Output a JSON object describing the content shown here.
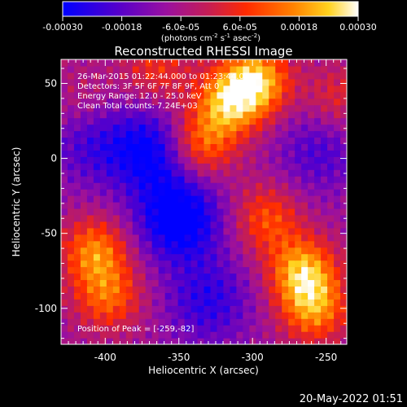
{
  "colorbar": {
    "ticks": [
      "-0.00030",
      "-0.00018",
      "-6.0e-05",
      "6.0e-05",
      "0.00018",
      "0.00030"
    ],
    "units_prefix": "(photons cm",
    "units_exp1": "-2",
    "units_mid": " s",
    "units_exp2": "-1",
    "units_mid2": " asec",
    "units_exp3": "-2",
    "units_suffix": ")"
  },
  "annotations": {
    "time_range": "26-Mar-2015 01:22:44.000 to 01:23:44.000",
    "detectors": "Detectors: 3F 5F 6F 7F 8F 9F, Att 0",
    "energy": "Energy Range: 12.0 - 25.0 keV",
    "clean": "Clean     Total counts: 7.24E+03",
    "peak": "Position of Peak = [-259,-82]"
  },
  "footer": {
    "timestamp": "20-May-2022 01:51"
  },
  "chart_data": {
    "type": "heatmap",
    "title": "Reconstructed RHESSI Image",
    "xlabel": "Heliocentric X (arcsec)",
    "ylabel": "Heliocentric Y (arcsec)",
    "xlim": [
      -430,
      -236
    ],
    "ylim": [
      -124,
      66
    ],
    "x_ticks": [
      -400,
      -350,
      -300,
      -250
    ],
    "y_ticks": [
      -100,
      -50,
      0,
      50
    ],
    "x_tick_labels": [
      "-400",
      "-350",
      "-300",
      "-250"
    ],
    "y_tick_labels": [
      "-100",
      "-50",
      "0",
      "50"
    ],
    "value_range": [
      -0.0003,
      0.0003
    ],
    "colormap": [
      "#0000ff",
      "#5a00c8",
      "#9a10a0",
      "#c81e50",
      "#ff2a00",
      "#ff8200",
      "#ffd21e",
      "#ffffff"
    ],
    "peak_position": [
      -259,
      -82
    ],
    "sources": [
      {
        "x": -316,
        "y": 38,
        "peak": 0.00028
      },
      {
        "x": -297,
        "y": 52,
        "peak": 0.0003
      },
      {
        "x": -335,
        "y": 10,
        "peak": 0.00022
      },
      {
        "x": -266,
        "y": -75,
        "peak": 0.00029
      },
      {
        "x": -258,
        "y": -100,
        "peak": 0.00024
      },
      {
        "x": -290,
        "y": -40,
        "peak": 0.00018
      },
      {
        "x": -407,
        "y": -62,
        "peak": 0.00024
      },
      {
        "x": -398,
        "y": -92,
        "peak": 0.0002
      },
      {
        "x": -365,
        "y": 60,
        "peak": 0.00014
      },
      {
        "x": -242,
        "y": 40,
        "peak": 0.00012
      },
      {
        "x": -415,
        "y": 40,
        "peak": 6e-05
      }
    ],
    "sinks": [
      {
        "x": -350,
        "y": -40,
        "depth": -0.00028
      },
      {
        "x": -370,
        "y": 5,
        "depth": -0.00022
      },
      {
        "x": -330,
        "y": -95,
        "depth": -0.00016
      },
      {
        "x": -255,
        "y": 5,
        "depth": -0.00012
      },
      {
        "x": -410,
        "y": 10,
        "depth": -0.00012
      }
    ]
  }
}
